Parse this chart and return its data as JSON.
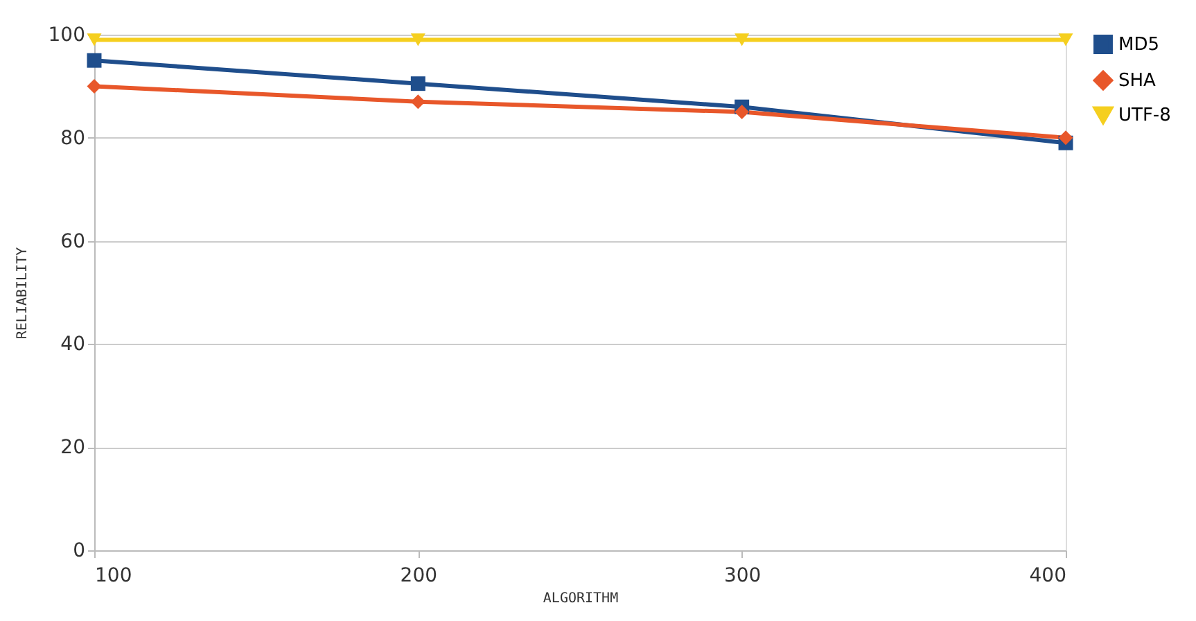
{
  "chart_data": {
    "type": "line",
    "xlabel": "ALGORITHM",
    "ylabel": "RELIABILITY",
    "x": [
      100,
      200,
      300,
      400
    ],
    "series": [
      {
        "name": "MD5",
        "color": "#1f4e8c",
        "marker": "square",
        "values": [
          95,
          90.5,
          86,
          79
        ]
      },
      {
        "name": "SHA",
        "color": "#e8572a",
        "marker": "diamond",
        "values": [
          90,
          87,
          85,
          80
        ]
      },
      {
        "name": "UTF-8",
        "color": "#f5cf1f",
        "marker": "triangle",
        "values": [
          99,
          99,
          99,
          99
        ]
      }
    ],
    "xlim": [
      100,
      400
    ],
    "xticks": [
      100,
      200,
      300,
      400
    ],
    "ylim": [
      0,
      100
    ],
    "yticks": [
      0,
      20,
      40,
      60,
      80,
      100
    ],
    "grid": "y",
    "legend": "right",
    "line_style": "solid"
  }
}
